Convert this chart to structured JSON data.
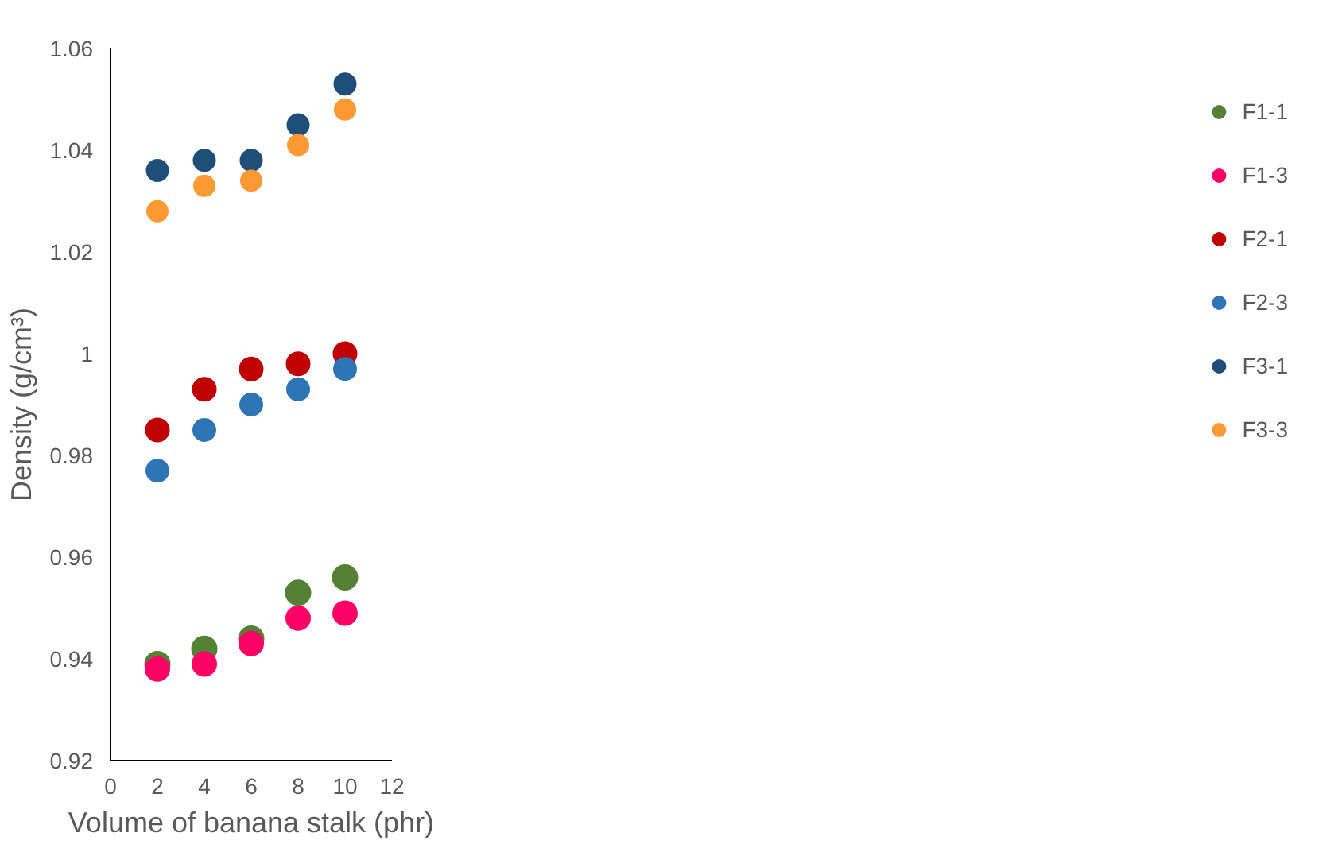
{
  "chart_data": {
    "type": "scatter",
    "xlabel": "Volume of banana stalk (phr)",
    "ylabel": "Density (g/cm³)",
    "x": [
      2,
      4,
      6,
      8,
      10
    ],
    "series": [
      {
        "name": "F1-1",
        "color": "#548235",
        "values": [
          0.939,
          0.942,
          0.944,
          0.953,
          0.956
        ]
      },
      {
        "name": "F1-3",
        "color": "#ff0066",
        "values": [
          0.938,
          0.939,
          0.943,
          0.948,
          0.949
        ]
      },
      {
        "name": "F2-1",
        "color": "#c00000",
        "values": [
          0.985,
          0.993,
          0.997,
          0.998,
          1.0
        ]
      },
      {
        "name": "F2-3",
        "color": "#2e75b6",
        "values": [
          0.977,
          0.985,
          0.99,
          0.993,
          0.997
        ]
      },
      {
        "name": "F3-1",
        "color": "#1f4e79",
        "values": [
          1.036,
          1.038,
          1.038,
          1.045,
          1.053
        ]
      },
      {
        "name": "F3-3",
        "color": "#ff9933",
        "values": [
          1.028,
          1.033,
          1.034,
          1.041,
          1.048
        ]
      }
    ],
    "xlim": [
      0,
      12
    ],
    "xticks": [
      0,
      2,
      4,
      6,
      8,
      10,
      12
    ],
    "ylim": [
      0.92,
      1.06
    ],
    "yticks": [
      0.92,
      0.94,
      0.96,
      0.98,
      1,
      1.02,
      1.04,
      1.06
    ],
    "grid": false,
    "legend": "right",
    "marker": "circle"
  }
}
